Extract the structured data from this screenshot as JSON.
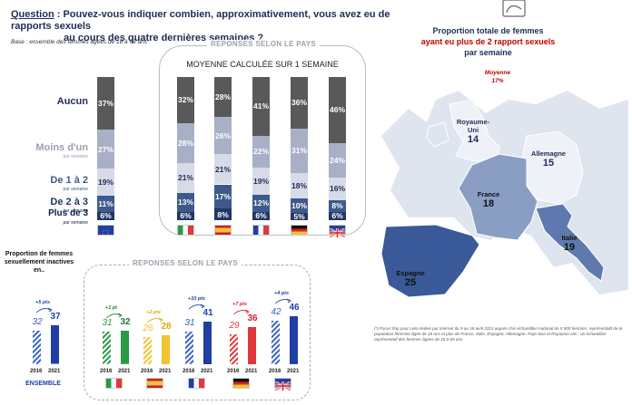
{
  "question": {
    "label": "Question",
    "text": ": Pouvez-vous indiquer combien, approximativement, vous avez eu de rapports sexuels",
    "text2": "au cours des quatre dernières semaines ?"
  },
  "base": "Base : ensemble des femmes âgées de 18 à 69 ans",
  "left_header": "REPONSES SELON LE PAYS",
  "left_subheader": "MOYENNE CALCULÉE SUR 1 SEMAINE",
  "bottom_header": "REPONSES SELON LE PAYS",
  "rows": [
    {
      "label": "Aucun",
      "sub": ""
    },
    {
      "label": "Moins d'un",
      "sub": "par semaine"
    },
    {
      "label": "De 1 à 2",
      "sub": "par semaine"
    },
    {
      "label": "De 2 à 3",
      "sub": "par semaine"
    },
    {
      "label": "Plus de 3",
      "sub": "par semaine"
    }
  ],
  "colors": {
    "aucun": "#595959",
    "moins": "#a7b0c6",
    "un_deux": "#d6dbe7",
    "deux_trois": "#3e5a8c",
    "plus3": "#1f3864",
    "hatch": "#9fb1da"
  },
  "map": {
    "title1": "Proportion totale de femmes",
    "title2": "ayant eu plus de 2 rapport sexuels",
    "title3": "par semaine",
    "avg_label": "Moyenne",
    "avg_value": "17%",
    "countries": [
      {
        "name": "Royaume-Uni",
        "value": "14"
      },
      {
        "name": "Allemagne",
        "value": "15"
      },
      {
        "name": "France",
        "value": "18"
      },
      {
        "name": "Italie",
        "value": "19"
      },
      {
        "name": "Espagne",
        "value": "25"
      }
    ]
  },
  "footnote": "(*) Focus Ifop pour Lelo réalisé par internet du 9 au 18 avril 2021 auprès d'un échantillon national de 5 500 femmes, représentatif de la population féminine âgée de 18 ans et plus de France, Italie, Espagne, Allemagne, Pays-Bas et Royaume-Uni ; un échantillon représentatif des femmes âgées de 18 à 69 ans.",
  "inactive_title": "Proportion de femmes sexuellement inactives en..",
  "ensemble_label": "ENSEMBLE",
  "chart_data": [
    {
      "type": "bar",
      "stacked": true,
      "categories": [
        "Ensemble",
        "Italie",
        "Espagne",
        "France",
        "Allemagne",
        "Royaume-Uni"
      ],
      "series": [
        {
          "name": "Aucun",
          "values": [
            37,
            32,
            28,
            41,
            36,
            46
          ]
        },
        {
          "name": "Moins d'un par semaine",
          "values": [
            27,
            28,
            26,
            22,
            31,
            24
          ]
        },
        {
          "name": "De 1 à 2 par semaine",
          "values": [
            19,
            21,
            21,
            19,
            18,
            16
          ]
        },
        {
          "name": "De 2 à 3 par semaine",
          "values": [
            11,
            13,
            17,
            12,
            10,
            8
          ]
        },
        {
          "name": "Plus de 3 par semaine",
          "values": [
            6,
            6,
            8,
            6,
            5,
            6
          ]
        }
      ]
    },
    {
      "type": "bar",
      "categories": [
        "Ensemble",
        "Italie",
        "Espagne",
        "France",
        "Allemagne",
        "Royaume-Uni"
      ],
      "years": [
        "2016",
        "2021"
      ],
      "series": [
        {
          "name": "2016",
          "values": [
            32,
            31,
            26,
            31,
            29,
            42
          ]
        },
        {
          "name": "2021",
          "values": [
            37,
            32,
            28,
            41,
            36,
            46
          ]
        }
      ],
      "changes": [
        "+5 pts",
        "+1 pt",
        "+2 pts",
        "+10 pts",
        "+7 pts",
        "+4 pts"
      ]
    }
  ]
}
